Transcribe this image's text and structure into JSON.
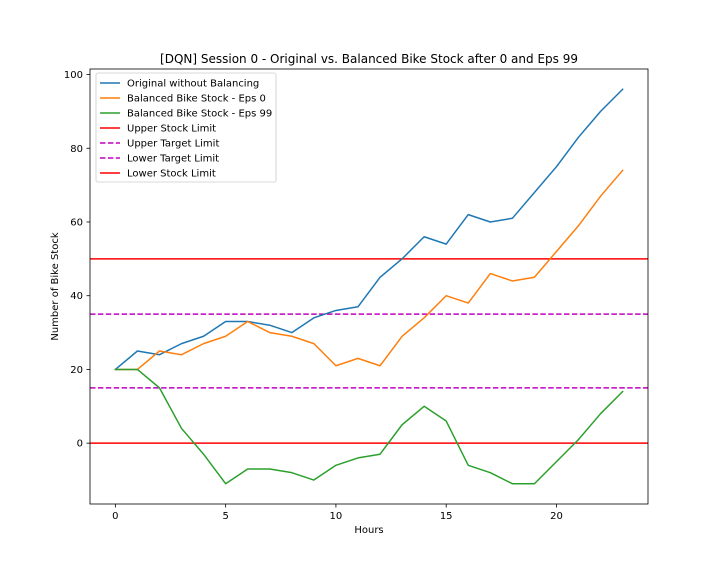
{
  "chart_data": {
    "type": "line",
    "title": "[DQN] Session 0 - Original vs. Balanced Bike Stock after 0 and Eps 99",
    "xlabel": "Hours",
    "ylabel": "Number of Bike Stock",
    "xlim": [
      -1.15,
      24.15
    ],
    "ylim": [
      -16.5,
      101.5
    ],
    "xticks": [
      0,
      5,
      10,
      15,
      20
    ],
    "yticks": [
      0,
      20,
      40,
      60,
      80,
      100
    ],
    "grid": false,
    "legend_position": "top-left",
    "x": [
      0,
      1,
      2,
      3,
      4,
      5,
      6,
      7,
      8,
      9,
      10,
      11,
      12,
      13,
      14,
      15,
      16,
      17,
      18,
      19,
      20,
      21,
      22,
      23
    ],
    "series": [
      {
        "name": "Original without Balancing",
        "color": "#1f77b4",
        "style": "solid",
        "values": [
          20,
          25,
          24,
          27,
          29,
          33,
          33,
          32,
          30,
          34,
          36,
          37,
          45,
          50,
          56,
          54,
          62,
          60,
          61,
          68,
          75,
          83,
          90,
          96
        ]
      },
      {
        "name": "Balanced Bike Stock - Eps 0",
        "color": "#ff7f0e",
        "style": "solid",
        "values": [
          20,
          20,
          25,
          24,
          27,
          29,
          33,
          30,
          29,
          27,
          21,
          23,
          21,
          29,
          34,
          40,
          38,
          46,
          44,
          45,
          52,
          59,
          67,
          74
        ]
      },
      {
        "name": "Balanced Bike Stock - Eps 99",
        "color": "#2ca02c",
        "style": "solid",
        "values": [
          20,
          20,
          15,
          4,
          -3,
          -11,
          -7,
          -7,
          -8,
          -10,
          -6,
          -4,
          -3,
          5,
          10,
          6,
          -6,
          -8,
          -11,
          -11,
          -5,
          1,
          8,
          14
        ]
      }
    ],
    "reference_lines": [
      {
        "name": "Upper Stock Limit",
        "value": 50,
        "color": "#ff0000",
        "style": "solid"
      },
      {
        "name": "Upper Target Limit",
        "value": 35,
        "color": "#bf00bf",
        "style": "dashed"
      },
      {
        "name": "Lower Target Limit",
        "value": 15,
        "color": "#bf00bf",
        "style": "dashed"
      },
      {
        "name": "Lower Stock Limit",
        "value": 0,
        "color": "#ff0000",
        "style": "solid"
      }
    ]
  }
}
